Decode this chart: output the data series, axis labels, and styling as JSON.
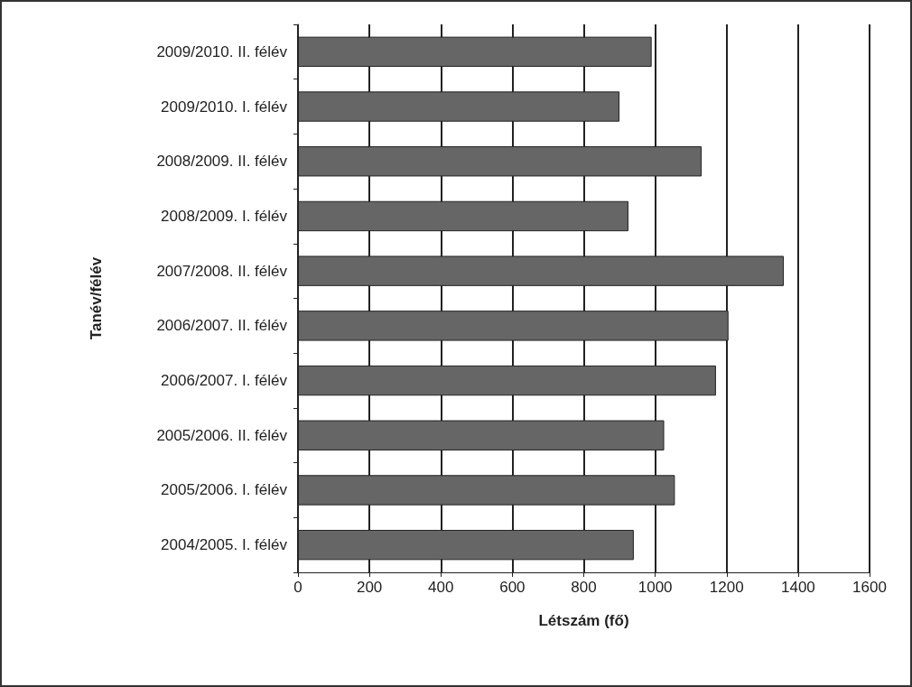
{
  "chart_data": {
    "type": "bar",
    "orientation": "horizontal",
    "xlabel": "Létszám (fő)",
    "ylabel": "Tanév/félév",
    "categories": [
      "2009/2010. II. félév",
      "2009/2010. I. félév",
      "2008/2009. II. félév",
      "2008/2009. I. félév",
      "2007/2008. II. félév",
      "2006/2007. II. félév",
      "2006/2007. I. félév",
      "2005/2006. II. félév",
      "2005/2006. I. félév",
      "2004/2005. I. félév"
    ],
    "values": [
      990,
      900,
      1130,
      925,
      1360,
      1205,
      1170,
      1025,
      1055,
      940
    ],
    "color": "#666666",
    "xlim": [
      0,
      1600
    ],
    "xticks": [
      0,
      200,
      400,
      600,
      800,
      1000,
      1200,
      1400,
      1600
    ],
    "grid": "x"
  }
}
